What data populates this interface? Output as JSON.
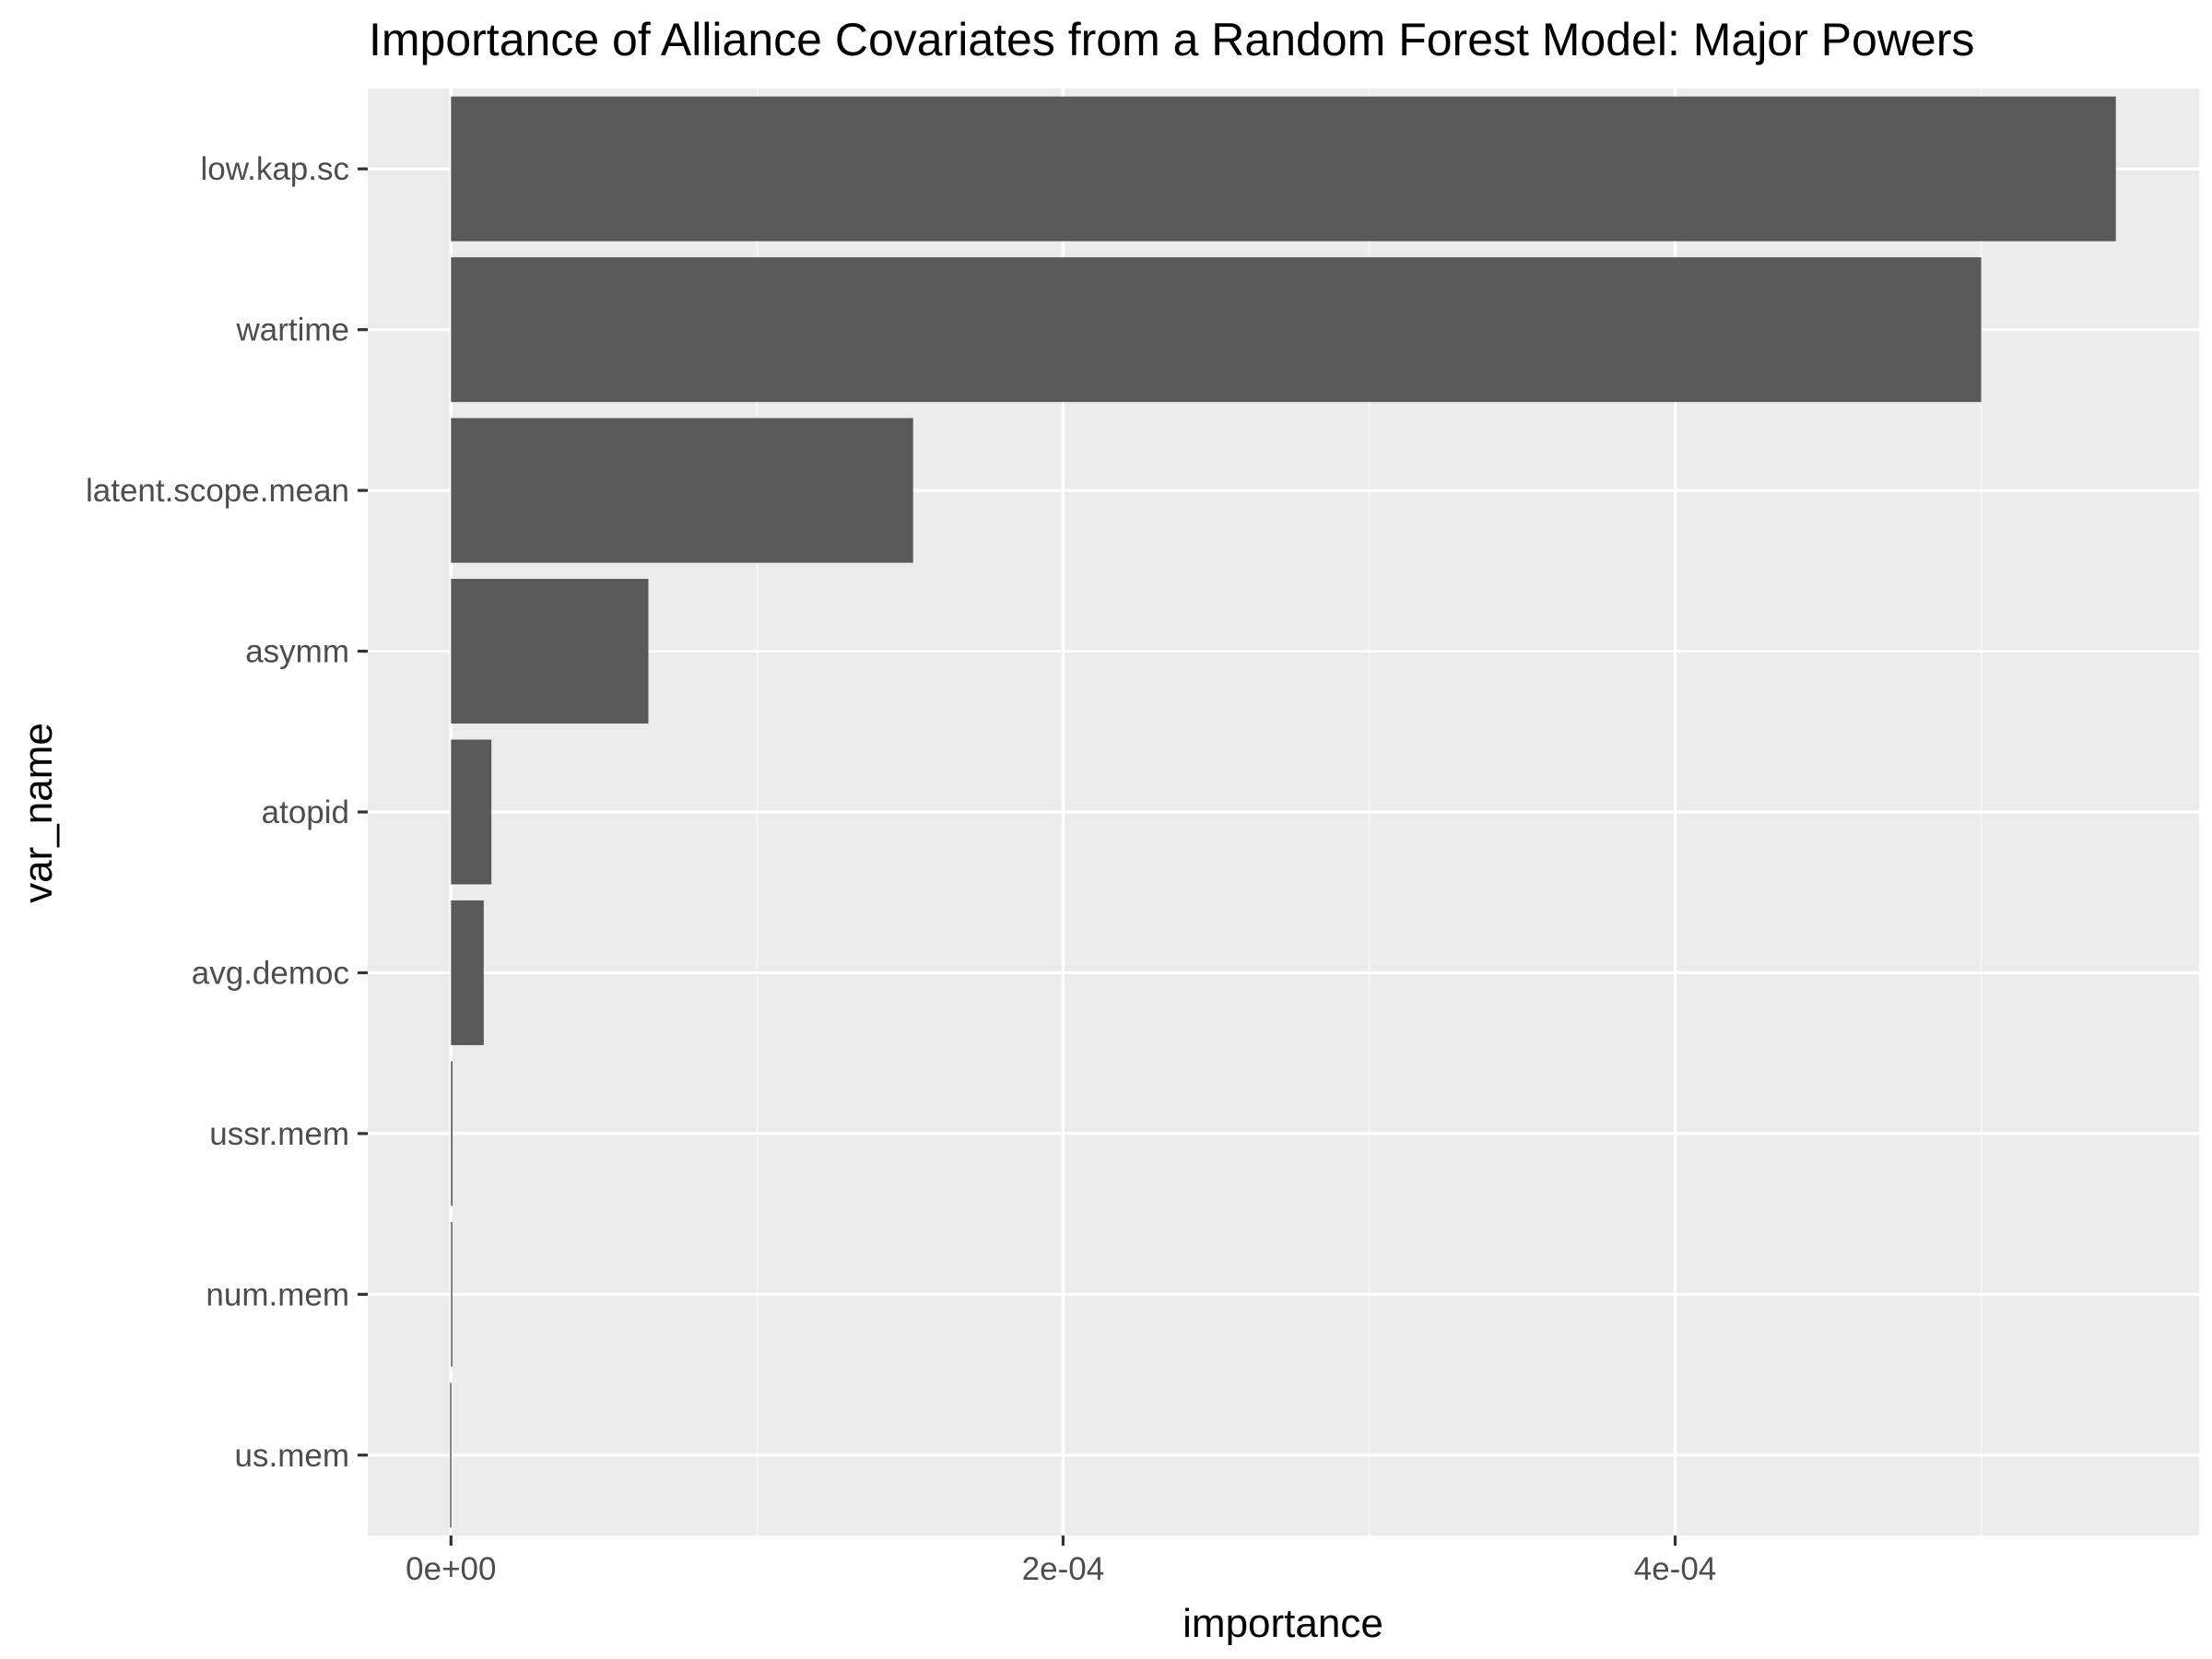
{
  "chart_data": {
    "type": "bar",
    "orientation": "horizontal",
    "title": "Importance of Alliance Covariates from a Random Forest Model: Major Powers",
    "xlabel": "importance",
    "ylabel": "var_name",
    "categories": [
      "low.kap.sc",
      "wartime",
      "latent.scope.mean",
      "asymm",
      "atopid",
      "avg.democ",
      "ussr.mem",
      "num.mem",
      "us.mem"
    ],
    "values": [
      0.000544,
      0.0005,
      0.000151,
      6.45e-05,
      1.32e-05,
      1.07e-05,
      5e-07,
      2e-07,
      -3e-07
    ],
    "xlim": [
      -2.72e-05,
      0.0005712
    ],
    "xticks": [
      0,
      0.0002,
      0.0004
    ],
    "xtick_labels": [
      "0e+00",
      "2e-04",
      "4e-04"
    ],
    "grid": true,
    "legend": "none",
    "colors": {
      "panel_background": "#ebebeb",
      "bar_fill": "#595959",
      "grid_major": "#ffffff",
      "grid_minor": "#f7f7f7",
      "tick_mark": "#333333",
      "tick_label": "#4d4d4d",
      "text": "#000000"
    }
  }
}
